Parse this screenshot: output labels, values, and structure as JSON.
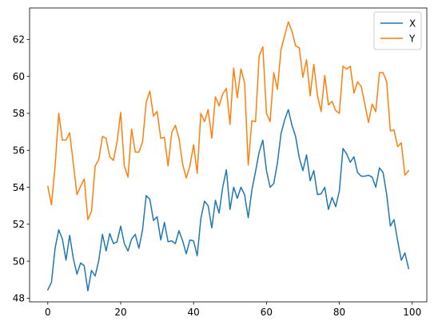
{
  "chart_data": {
    "type": "line",
    "xlim": [
      -5,
      104
    ],
    "ylim": [
      47.8,
      63.7
    ],
    "x_ticks": [
      0,
      20,
      40,
      60,
      80,
      100
    ],
    "y_ticks": [
      48,
      50,
      52,
      54,
      56,
      58,
      60,
      62
    ],
    "grid": false,
    "legend_position": "top-right",
    "series": [
      {
        "name": "X",
        "color": "#1f77b4",
        "x": [
          0,
          1,
          2,
          3,
          4,
          5,
          6,
          7,
          8,
          9,
          10,
          11,
          12,
          13,
          14,
          15,
          16,
          17,
          18,
          19,
          20,
          21,
          22,
          23,
          24,
          25,
          26,
          27,
          28,
          29,
          30,
          31,
          32,
          33,
          34,
          35,
          36,
          37,
          38,
          39,
          40,
          41,
          42,
          43,
          44,
          45,
          46,
          47,
          48,
          49,
          50,
          51,
          52,
          53,
          54,
          55,
          56,
          57,
          58,
          59,
          60,
          61,
          62,
          63,
          64,
          65,
          66,
          67,
          68,
          69,
          70,
          71,
          72,
          73,
          74,
          75,
          76,
          77,
          78,
          79,
          80,
          81,
          82,
          83,
          84,
          85,
          86,
          87,
          88,
          89,
          90,
          91,
          92,
          93,
          94,
          95,
          96,
          97,
          98,
          99
        ],
        "values": [
          48.45,
          48.85,
          50.7,
          51.7,
          51.2,
          50.05,
          51.4,
          50.15,
          49.3,
          49.9,
          49.75,
          48.4,
          49.5,
          49.2,
          50.05,
          51.45,
          50.55,
          51.5,
          50.95,
          51.05,
          51.9,
          50.95,
          50.55,
          51.2,
          51.45,
          50.7,
          51.7,
          53.55,
          53.35,
          52.2,
          52.4,
          51.15,
          52.1,
          51.05,
          51.1,
          50.95,
          51.65,
          51.1,
          50.4,
          51.15,
          51.1,
          50.3,
          52.3,
          53.25,
          53.0,
          51.8,
          53.3,
          52.6,
          54.0,
          54.95,
          52.8,
          54.0,
          53.4,
          54.0,
          53.6,
          52.35,
          53.85,
          54.85,
          55.9,
          56.55,
          54.9,
          54.0,
          54.2,
          55.3,
          56.9,
          57.65,
          58.2,
          57.35,
          56.75,
          55.6,
          54.9,
          55.75,
          54.35,
          54.9,
          53.6,
          53.65,
          54.0,
          52.8,
          53.45,
          52.95,
          53.8,
          56.1,
          55.8,
          55.35,
          55.65,
          54.8,
          54.6,
          54.6,
          54.65,
          54.55,
          54.0,
          55.05,
          54.8,
          53.6,
          51.9,
          52.25,
          51.1,
          50.05,
          50.45,
          49.6
        ]
      },
      {
        "name": "Y",
        "color": "#ff7f0e",
        "x": [
          0,
          1,
          2,
          3,
          4,
          5,
          6,
          7,
          8,
          9,
          10,
          11,
          12,
          13,
          14,
          15,
          16,
          17,
          18,
          19,
          20,
          21,
          22,
          23,
          24,
          25,
          26,
          27,
          28,
          29,
          30,
          31,
          32,
          33,
          34,
          35,
          36,
          37,
          38,
          39,
          40,
          41,
          42,
          43,
          44,
          45,
          46,
          47,
          48,
          49,
          50,
          51,
          52,
          53,
          54,
          55,
          56,
          57,
          58,
          59,
          60,
          61,
          62,
          63,
          64,
          65,
          66,
          67,
          68,
          69,
          70,
          71,
          72,
          73,
          74,
          75,
          76,
          77,
          78,
          79,
          80,
          81,
          82,
          83,
          84,
          85,
          86,
          87,
          88,
          89,
          90,
          91,
          92,
          93,
          94,
          95,
          96,
          97,
          98,
          99
        ],
        "values": [
          54.05,
          53.05,
          55.15,
          58.0,
          56.55,
          56.55,
          56.95,
          55.3,
          53.6,
          54.05,
          54.45,
          52.25,
          52.7,
          55.15,
          55.5,
          56.75,
          56.65,
          55.65,
          55.45,
          56.45,
          58.05,
          55.15,
          54.55,
          57.15,
          55.9,
          55.9,
          56.45,
          58.6,
          59.2,
          57.85,
          58.1,
          56.65,
          56.7,
          55.15,
          56.95,
          57.35,
          56.65,
          55.25,
          54.5,
          55.15,
          56.3,
          54.75,
          58.0,
          57.55,
          58.2,
          56.65,
          58.9,
          58.4,
          59.05,
          59.35,
          57.4,
          60.45,
          58.85,
          60.4,
          59.65,
          55.2,
          57.6,
          57.55,
          61.1,
          61.6,
          58.0,
          57.55,
          60.2,
          59.3,
          61.45,
          62.2,
          62.95,
          62.45,
          61.65,
          61.55,
          59.95,
          60.9,
          58.95,
          60.65,
          58.95,
          58.1,
          60.05,
          58.45,
          58.65,
          58.15,
          58.0,
          60.55,
          60.4,
          60.55,
          59.1,
          59.7,
          59.45,
          58.5,
          57.5,
          58.5,
          58.1,
          60.2,
          60.2,
          59.7,
          57.05,
          57.1,
          56.2,
          56.4,
          54.65,
          54.9
        ]
      }
    ]
  }
}
